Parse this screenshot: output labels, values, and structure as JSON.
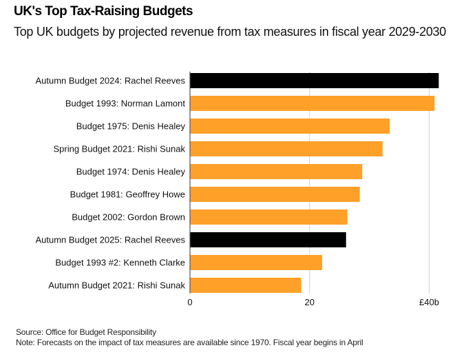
{
  "chart_data": {
    "type": "bar",
    "orientation": "horizontal",
    "title": "UK's Top Tax-Raising Budgets",
    "subtitle": "Top UK budgets by projected revenue from tax measures in fiscal year 2029-2030",
    "xlabel": "",
    "ylabel": "",
    "xlim": [
      0,
      40
    ],
    "xticks": [
      {
        "value": 0,
        "label": "0"
      },
      {
        "value": 20,
        "label": "20"
      },
      {
        "value": 40,
        "label": "£40b"
      }
    ],
    "grid": true,
    "categories": [
      "Autumn Budget 2024: Rachel Reeves",
      "Budget 1993: Norman Lamont",
      "Budget 1975: Denis Healey",
      "Spring Budget 2021: Rishi Sunak",
      "Budget 1974: Denis Healey",
      "Budget 1981: Geoffrey Howe",
      "Budget 2002: Gordon Brown",
      "Autumn Budget 2025: Rachel Reeves",
      "Budget 1993 #2: Kenneth Clarke",
      "Autumn Budget 2021: Rishi Sunak"
    ],
    "values": [
      41.6,
      40.9,
      33.4,
      32.2,
      28.8,
      28.4,
      26.3,
      26.1,
      22.1,
      18.6
    ],
    "highlight": [
      true,
      false,
      false,
      false,
      false,
      false,
      false,
      true,
      false,
      false
    ],
    "unit": "£ billion",
    "colors": {
      "default": "#FFA029",
      "highlight": "#000000",
      "grid": "#d0d0d0",
      "axis": "#555555"
    }
  },
  "footer": {
    "source": "Source: Office for Budget Responsibility",
    "note": "Note: Forecasts on the impact of tax measures are available since 1970. Fiscal year begins in April"
  }
}
